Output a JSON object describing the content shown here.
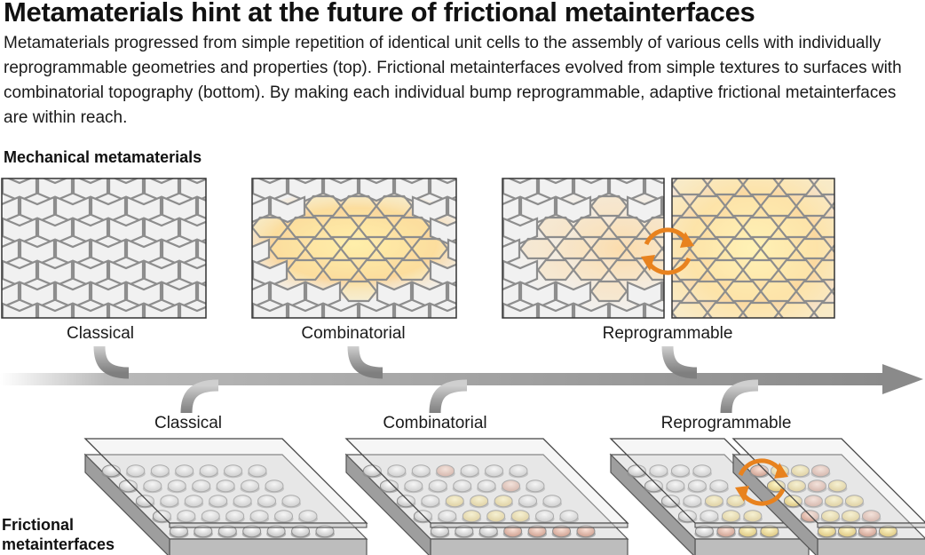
{
  "figure": {
    "title": "Metamaterials hint at the future of frictional metainterfaces",
    "caption": "Metamaterials progressed from simple repetition of identical unit cells to the assembly of various cells with individually reprogrammable geometries and properties (top). Frictional metainterfaces evolved from simple textures to surfaces with combinatorial topography (bottom).  By making each individual bump reprogrammable, adaptive frictional metainterfaces are within reach."
  },
  "sections": {
    "mechanical": {
      "heading": "Mechanical metamaterials",
      "stages": [
        "Classical",
        "Combinatorial",
        "Reprogrammable"
      ]
    },
    "frictional": {
      "heading_line1": "Frictional",
      "heading_line2": "metainterfaces",
      "stages": [
        "Classical",
        "Combinatorial",
        "Reprogrammable"
      ]
    }
  },
  "colors": {
    "arrow": "#8a8a8a",
    "tile_fill": "#f1f1f1",
    "tile_edge": "#8d8d8d",
    "glow": "#fbd98a",
    "glow_warm": "#f4b383",
    "reprogram_icon": "#e8821e",
    "plate": "#cfcfcf"
  },
  "icons": {
    "reprogram": "circular-arrows-icon"
  }
}
